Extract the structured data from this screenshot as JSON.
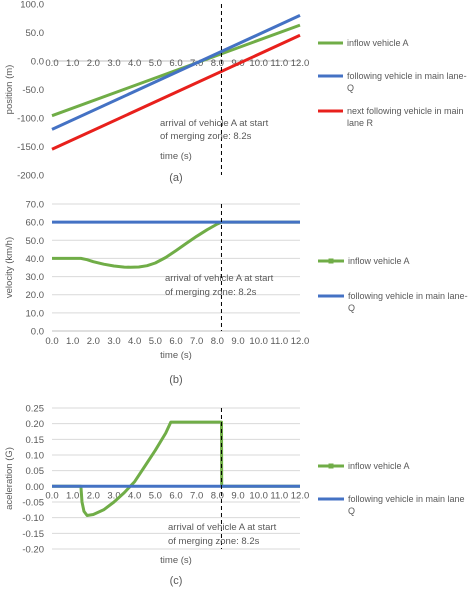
{
  "chart_data": [
    {
      "type": "line",
      "panel_label": "(a)",
      "xlabel": "time (s)",
      "ylabel": "position (m)",
      "xlim": [
        0,
        12
      ],
      "ylim": [
        -200,
        100
      ],
      "x_ticks": [
        "0.0",
        "1.0",
        "2.0",
        "3.0",
        "4.0",
        "5.0",
        "6.0",
        "7.0",
        "8.0",
        "9.0",
        "10.0",
        "11.0",
        "12.0"
      ],
      "y_ticks": [
        "100.0",
        "50.0",
        "0.0",
        "-50.0",
        "-100.0",
        "-150.0",
        "-200.0"
      ],
      "grid": false,
      "legend": "right",
      "annotation": "arrival of vehicle A at start of merging zone: 8.2s",
      "marker_line_x": 8.2,
      "series": [
        {
          "name": "inflow vehicle A",
          "color": "#70ad47",
          "x": [
            0,
            12
          ],
          "values": [
            -96,
            63
          ]
        },
        {
          "name": "following vehicle in main lane Q",
          "color": "#4472c4",
          "x": [
            0,
            12
          ],
          "values": [
            -120,
            80
          ]
        },
        {
          "name": "next following vehicle in main lane R",
          "color": "#e8201c",
          "x": [
            0,
            12
          ],
          "values": [
            -155,
            45
          ]
        }
      ]
    },
    {
      "type": "line",
      "panel_label": "(b)",
      "xlabel": "time (s)",
      "ylabel": "velocity (km/h)",
      "xlim": [
        0,
        12
      ],
      "ylim": [
        0,
        70
      ],
      "x_ticks": [
        "0.0",
        "1.0",
        "2.0",
        "3.0",
        "4.0",
        "5.0",
        "6.0",
        "7.0",
        "8.0",
        "9.0",
        "10.0",
        "11.0",
        "12.0"
      ],
      "y_ticks": [
        "70.0",
        "60.0",
        "50.0",
        "40.0",
        "30.0",
        "20.0",
        "10.0",
        "0.0"
      ],
      "grid": true,
      "legend": "right",
      "annotation": "arrival of vehicle A at start of merging zone: 8.2s",
      "marker_line_x": 8.2,
      "series": [
        {
          "name": "inflow vehicle A",
          "color": "#70ad47",
          "x": [
            0,
            0.5,
            1,
            1.4,
            1.7,
            2,
            2.5,
            3,
            3.5,
            3.8,
            4.2,
            4.6,
            5,
            5.5,
            6,
            6.5,
            7,
            7.5,
            8,
            8.2,
            9,
            10,
            11,
            12
          ],
          "values": [
            40,
            40,
            40,
            40,
            39.3,
            38.2,
            36.8,
            35.8,
            35.2,
            35.1,
            35.3,
            36,
            37.5,
            40.5,
            44.3,
            48.3,
            52.2,
            55.8,
            59,
            60,
            60,
            60,
            60,
            60
          ]
        },
        {
          "name": "following vehicle in main lane Q",
          "color": "#4472c4",
          "x": [
            0,
            12
          ],
          "values": [
            60,
            60
          ]
        }
      ]
    },
    {
      "type": "line",
      "panel_label": "(c)",
      "xlabel": "time (s)",
      "ylabel": "aceleration (G)",
      "xlim": [
        0,
        12
      ],
      "ylim": [
        -0.2,
        0.25
      ],
      "x_ticks": [
        "0.0",
        "1.0",
        "2.0",
        "3.0",
        "4.0",
        "5.0",
        "6.0",
        "7.0",
        "8.0",
        "9.0",
        "10.0",
        "11.0",
        "12.0"
      ],
      "y_ticks": [
        "0.25",
        "0.20",
        "0.15",
        "0.10",
        "0.05",
        "0.00",
        "-0.05",
        "-0.10",
        "-0.15",
        "-0.20"
      ],
      "grid": true,
      "legend": "right",
      "annotation": "arrival of vehicle A at start of merging zone: 8.2s",
      "marker_line_x": 8.2,
      "series": [
        {
          "name": "inflow vehicle A",
          "color": "#70ad47",
          "x": [
            0,
            1.4,
            1.45,
            1.55,
            1.7,
            2,
            2.5,
            3,
            3.5,
            4,
            4.5,
            5,
            5.5,
            5.75,
            6,
            7,
            8,
            8.2,
            8.21,
            8.4,
            9,
            10,
            11,
            12
          ],
          "values": [
            0,
            0,
            -0.05,
            -0.08,
            -0.093,
            -0.09,
            -0.075,
            -0.05,
            -0.02,
            0.015,
            0.065,
            0.115,
            0.17,
            0.205,
            0.205,
            0.205,
            0.205,
            0.205,
            0,
            0,
            0,
            0,
            0,
            0
          ]
        },
        {
          "name": "following vehicle in main lane Q",
          "color": "#4472c4",
          "x": [
            0,
            12
          ],
          "values": [
            0,
            0
          ]
        }
      ]
    }
  ]
}
